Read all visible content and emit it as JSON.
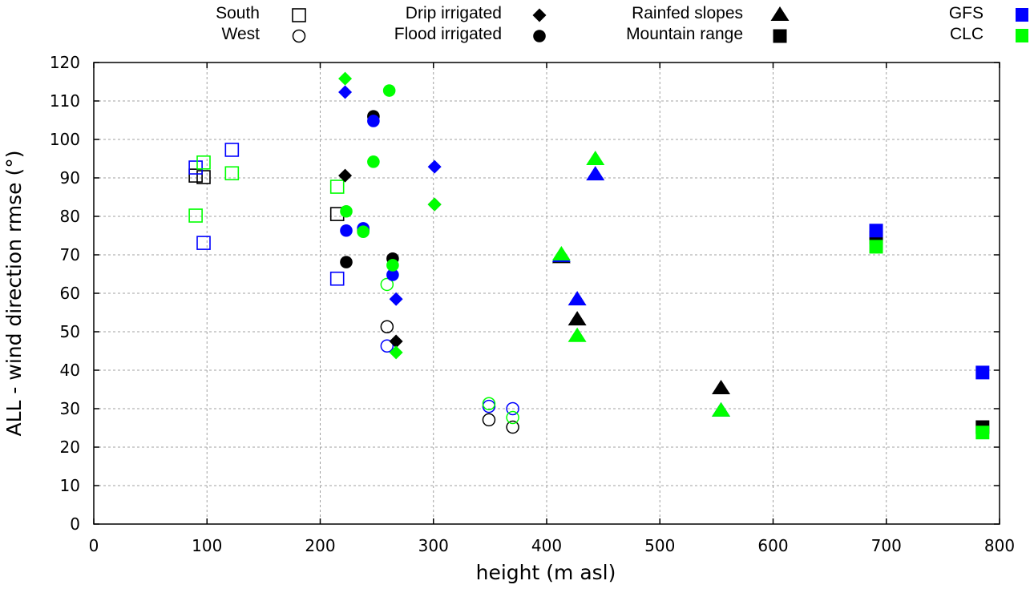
{
  "chart_data": {
    "type": "scatter",
    "title": "",
    "xlabel": "height (m asl)",
    "ylabel": "ALL - wind direction rmse (°)",
    "xlim": [
      0,
      800
    ],
    "ylim": [
      0,
      120
    ],
    "xticks": [
      0,
      100,
      200,
      300,
      400,
      500,
      600,
      700,
      800
    ],
    "yticks": [
      0,
      10,
      20,
      30,
      40,
      50,
      60,
      70,
      80,
      90,
      100,
      110,
      120
    ],
    "grid": true,
    "legend_placement": "top (outside plot)",
    "legend_shape_entries": [
      {
        "label": "South",
        "marker": "open-square"
      },
      {
        "label": "West",
        "marker": "open-circle"
      },
      {
        "label": "Drip irrigated",
        "marker": "diamond"
      },
      {
        "label": "Flood irrigated",
        "marker": "circle"
      },
      {
        "label": "Rainfed slopes",
        "marker": "triangle"
      },
      {
        "label": "Mountain range",
        "marker": "square"
      }
    ],
    "legend_color_entries": [
      {
        "label": "GFS",
        "color": "#0000ff"
      },
      {
        "label": "CLC",
        "color": "#00ff00"
      }
    ],
    "default_color": "#000000",
    "series": [
      {
        "name": "South",
        "marker": "open-square",
        "points": [
          {
            "x": 90,
            "y": 92.7,
            "source": "GFS"
          },
          {
            "x": 90,
            "y": 90.6,
            "source": "default"
          },
          {
            "x": 90,
            "y": 80.2,
            "source": "CLC"
          },
          {
            "x": 97,
            "y": 94.0,
            "source": "CLC"
          },
          {
            "x": 97,
            "y": 90.2,
            "source": "default"
          },
          {
            "x": 97,
            "y": 73.1,
            "source": "GFS"
          },
          {
            "x": 122,
            "y": 97.3,
            "source": "GFS"
          },
          {
            "x": 122,
            "y": 91.2,
            "source": "CLC"
          },
          {
            "x": 215,
            "y": 87.7,
            "source": "CLC"
          },
          {
            "x": 215,
            "y": 80.6,
            "source": "default"
          },
          {
            "x": 215,
            "y": 63.8,
            "source": "GFS"
          }
        ]
      },
      {
        "name": "West",
        "marker": "open-circle",
        "points": [
          {
            "x": 259,
            "y": 62.3,
            "source": "CLC"
          },
          {
            "x": 259,
            "y": 51.3,
            "source": "default"
          },
          {
            "x": 259,
            "y": 46.3,
            "source": "GFS"
          },
          {
            "x": 349,
            "y": 31.3,
            "source": "CLC"
          },
          {
            "x": 349,
            "y": 30.6,
            "source": "GFS"
          },
          {
            "x": 349,
            "y": 27.1,
            "source": "default"
          },
          {
            "x": 370,
            "y": 30.0,
            "source": "GFS"
          },
          {
            "x": 370,
            "y": 27.7,
            "source": "CLC"
          },
          {
            "x": 370,
            "y": 25.2,
            "source": "default"
          }
        ]
      },
      {
        "name": "Drip irrigated",
        "marker": "diamond",
        "points": [
          {
            "x": 222,
            "y": 115.8,
            "source": "CLC"
          },
          {
            "x": 222,
            "y": 112.3,
            "source": "GFS"
          },
          {
            "x": 222,
            "y": 90.6,
            "source": "default"
          },
          {
            "x": 301,
            "y": 92.9,
            "source": "GFS"
          },
          {
            "x": 301,
            "y": 83.1,
            "source": "default"
          },
          {
            "x": 301,
            "y": 83.1,
            "source": "CLC"
          },
          {
            "x": 267,
            "y": 58.5,
            "source": "GFS"
          },
          {
            "x": 267,
            "y": 47.5,
            "source": "default"
          },
          {
            "x": 267,
            "y": 44.6,
            "source": "CLC"
          }
        ]
      },
      {
        "name": "Flood irrigated",
        "marker": "circle",
        "points": [
          {
            "x": 261,
            "y": 112.7,
            "source": "CLC"
          },
          {
            "x": 247,
            "y": 106.0,
            "source": "default"
          },
          {
            "x": 247,
            "y": 104.8,
            "source": "GFS"
          },
          {
            "x": 247,
            "y": 94.2,
            "source": "CLC"
          },
          {
            "x": 223,
            "y": 81.3,
            "source": "CLC"
          },
          {
            "x": 223,
            "y": 76.3,
            "source": "GFS"
          },
          {
            "x": 223,
            "y": 68.1,
            "source": "default"
          },
          {
            "x": 238,
            "y": 76.9,
            "source": "GFS"
          },
          {
            "x": 238,
            "y": 76.3,
            "source": "default"
          },
          {
            "x": 238,
            "y": 76.0,
            "source": "CLC"
          },
          {
            "x": 264,
            "y": 69.0,
            "source": "default"
          },
          {
            "x": 264,
            "y": 67.3,
            "source": "CLC"
          },
          {
            "x": 264,
            "y": 64.8,
            "source": "GFS"
          }
        ]
      },
      {
        "name": "Rainfed slopes",
        "marker": "triangle",
        "points": [
          {
            "x": 443,
            "y": 94.8,
            "source": "CLC"
          },
          {
            "x": 443,
            "y": 90.8,
            "source": "GFS"
          },
          {
            "x": 413,
            "y": 69.3,
            "source": "default"
          },
          {
            "x": 413,
            "y": 69.6,
            "source": "GFS"
          },
          {
            "x": 413,
            "y": 70.0,
            "source": "CLC"
          },
          {
            "x": 427,
            "y": 58.3,
            "source": "GFS"
          },
          {
            "x": 427,
            "y": 53.1,
            "source": "default"
          },
          {
            "x": 427,
            "y": 48.8,
            "source": "CLC"
          },
          {
            "x": 554,
            "y": 35.2,
            "source": "default"
          },
          {
            "x": 554,
            "y": 29.4,
            "source": "GFS"
          },
          {
            "x": 554,
            "y": 29.4,
            "source": "CLC"
          }
        ]
      },
      {
        "name": "Mountain range",
        "marker": "square",
        "points": [
          {
            "x": 691,
            "y": 76.3,
            "source": "GFS"
          },
          {
            "x": 691,
            "y": 74.5,
            "source": "default"
          },
          {
            "x": 691,
            "y": 72.1,
            "source": "CLC"
          },
          {
            "x": 785,
            "y": 39.4,
            "source": "GFS"
          },
          {
            "x": 785,
            "y": 25.2,
            "source": "default"
          },
          {
            "x": 785,
            "y": 23.8,
            "source": "CLC"
          }
        ]
      }
    ]
  }
}
